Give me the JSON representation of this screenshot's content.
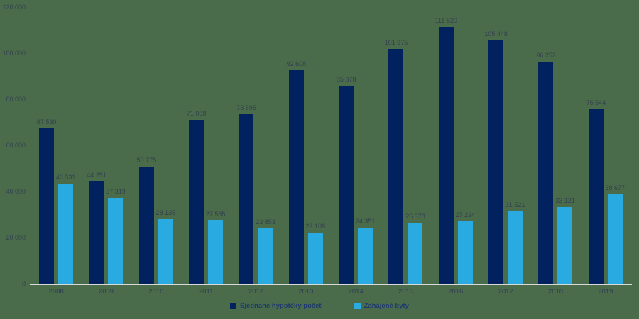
{
  "chart_data": {
    "type": "bar",
    "title": "",
    "xlabel": "",
    "ylabel": "",
    "categories": [
      "2008",
      "2009",
      "2010",
      "2011",
      "2012",
      "2013",
      "2014",
      "2015",
      "2016",
      "2017",
      "2018",
      "2019"
    ],
    "series": [
      {
        "key": "mortgages",
        "name": "Sjednané hypotéky počet",
        "color": "#02215F",
        "values": [
          67530,
          44251,
          50775,
          71088,
          73595,
          92608,
          85878,
          101975,
          111520,
          105448,
          96252,
          75544
        ]
      },
      {
        "key": "housing-starts",
        "name": "Zahájené byty",
        "color": "#29ABE2",
        "values": [
          43531,
          37319,
          28135,
          27535,
          23853,
          22108,
          24351,
          26378,
          27224,
          31521,
          33121,
          38677
        ]
      }
    ],
    "ylim": [
      0,
      120000
    ],
    "yticks": [
      0,
      20000,
      40000,
      60000,
      80000,
      100000,
      120000
    ],
    "grid": false,
    "legend_position": "bottom",
    "value_labels": true,
    "number_format": "space-thousands"
  },
  "colors": {
    "background": "#4B6C4B",
    "bar_dark": "#02215F",
    "bar_light": "#29ABE2",
    "text": "#33414F",
    "year_text": "#2E3D55",
    "legend_text": "#1E3A6E",
    "baseline": "#DADADA"
  }
}
